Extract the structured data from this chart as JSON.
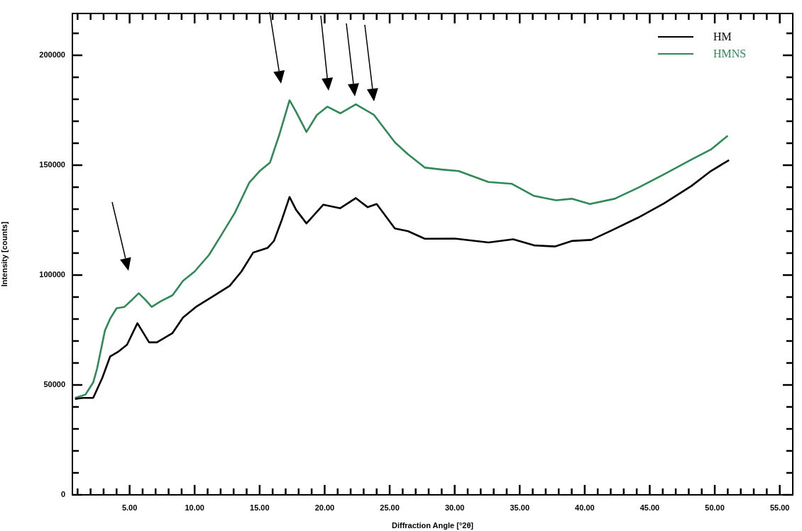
{
  "chart_data": {
    "type": "line",
    "xlabel": "Diffraction Angle [°2θ]",
    "ylabel": "Intensity [counts]",
    "legend": "top right",
    "xlim": [
      0.6,
      56
    ],
    "ylim": [
      0,
      219000
    ],
    "xticks": [
      {
        "value": 1,
        "label": null
      },
      {
        "value": 2,
        "label": null
      },
      {
        "value": 3,
        "label": null
      },
      {
        "value": 4,
        "label": null
      },
      {
        "value": 5,
        "label": "5.00"
      },
      {
        "value": 6,
        "label": null
      },
      {
        "value": 7,
        "label": null
      },
      {
        "value": 8,
        "label": null
      },
      {
        "value": 9,
        "label": null
      },
      {
        "value": 10,
        "label": "10.00"
      },
      {
        "value": 11,
        "label": null
      },
      {
        "value": 12,
        "label": null
      },
      {
        "value": 13,
        "label": null
      },
      {
        "value": 14,
        "label": null
      },
      {
        "value": 15,
        "label": "15.00"
      },
      {
        "value": 16,
        "label": null
      },
      {
        "value": 17,
        "label": null
      },
      {
        "value": 18,
        "label": null
      },
      {
        "value": 19,
        "label": null
      },
      {
        "value": 20,
        "label": "20.00"
      },
      {
        "value": 21,
        "label": null
      },
      {
        "value": 22,
        "label": null
      },
      {
        "value": 23,
        "label": null
      },
      {
        "value": 24,
        "label": null
      },
      {
        "value": 25,
        "label": "25.00"
      },
      {
        "value": 26,
        "label": null
      },
      {
        "value": 27,
        "label": null
      },
      {
        "value": 28,
        "label": null
      },
      {
        "value": 29,
        "label": null
      },
      {
        "value": 30,
        "label": "30.00"
      },
      {
        "value": 31,
        "label": null
      },
      {
        "value": 32,
        "label": null
      },
      {
        "value": 33,
        "label": null
      },
      {
        "value": 34,
        "label": null
      },
      {
        "value": 35,
        "label": "35.00"
      },
      {
        "value": 36,
        "label": null
      },
      {
        "value": 37,
        "label": null
      },
      {
        "value": 38,
        "label": null
      },
      {
        "value": 39,
        "label": null
      },
      {
        "value": 40,
        "label": "40.00"
      },
      {
        "value": 41,
        "label": null
      },
      {
        "value": 42,
        "label": null
      },
      {
        "value": 43,
        "label": null
      },
      {
        "value": 44,
        "label": null
      },
      {
        "value": 45,
        "label": "45.00"
      },
      {
        "value": 46,
        "label": null
      },
      {
        "value": 47,
        "label": null
      },
      {
        "value": 48,
        "label": null
      },
      {
        "value": 49,
        "label": null
      },
      {
        "value": 50,
        "label": "50.00"
      },
      {
        "value": 51,
        "label": null
      },
      {
        "value": 52,
        "label": null
      },
      {
        "value": 53,
        "label": null
      },
      {
        "value": 54,
        "label": null
      },
      {
        "value": 55,
        "label": "55.00"
      }
    ],
    "yticks": [
      0,
      {
        "value": 10000,
        "label": null
      },
      {
        "value": 20000,
        "label": null
      },
      {
        "value": 30000,
        "label": null
      },
      {
        "value": 40000,
        "label": null
      },
      50000,
      {
        "value": 60000,
        "label": null
      },
      {
        "value": 70000,
        "label": null
      },
      {
        "value": 80000,
        "label": null
      },
      {
        "value": 90000,
        "label": null
      },
      100000,
      {
        "value": 110000,
        "label": null
      },
      {
        "value": 120000,
        "label": null
      },
      {
        "value": 130000,
        "label": null
      },
      {
        "value": 140000,
        "label": null
      },
      150000,
      {
        "value": 160000,
        "label": null
      },
      {
        "value": 170000,
        "label": null
      },
      {
        "value": 180000,
        "label": null
      },
      {
        "value": 190000,
        "label": null
      },
      200000,
      {
        "value": 210000,
        "label": null
      }
    ],
    "series": [
      {
        "name": "HM",
        "color": "#000000",
        "x": [
          0.8,
          1.4,
          2.2,
          2.9,
          3.5,
          4.1,
          4.8,
          5.6,
          6.5,
          7.1,
          8.3,
          9.1,
          10.1,
          11.4,
          12.7,
          13.6,
          14.5,
          15.6,
          16.1,
          16.7,
          17.3,
          17.8,
          18.6,
          19.9,
          21.2,
          22.4,
          23.3,
          24.0,
          25.4,
          26.4,
          27.7,
          30.0,
          32.6,
          34.5,
          36.1,
          37.7,
          39.0,
          40.5,
          42.0,
          44.1,
          46.1,
          48.2,
          49.7,
          51.1
        ],
        "values": [
          43600,
          44100,
          44100,
          53200,
          62900,
          65000,
          68300,
          78100,
          69400,
          69400,
          73600,
          80600,
          85500,
          90300,
          95100,
          101600,
          110200,
          112300,
          115500,
          125000,
          135500,
          129700,
          123500,
          132000,
          130400,
          135000,
          130900,
          132300,
          121200,
          120000,
          116500,
          116600,
          114800,
          116300,
          113500,
          113000,
          115500,
          116000,
          120100,
          126100,
          132600,
          140500,
          147300,
          152300
        ]
      },
      {
        "name": "HMNS",
        "color": "#2e8b57",
        "x": [
          0.8,
          1.6,
          2.2,
          2.5,
          3.1,
          3.5,
          4.0,
          4.6,
          5.2,
          5.7,
          6.2,
          6.7,
          7.4,
          8.3,
          9.1,
          10.0,
          11.1,
          12.0,
          13.1,
          14.2,
          15.0,
          15.8,
          16.5,
          17.3,
          17.8,
          18.6,
          19.4,
          20.2,
          21.2,
          22.4,
          23.8,
          25.4,
          26.4,
          27.7,
          29.0,
          30.3,
          32.6,
          34.4,
          36.1,
          37.8,
          39.0,
          40.4,
          42.3,
          44.1,
          46.1,
          48.2,
          49.7,
          51.0
        ],
        "values": [
          44100,
          45600,
          51100,
          57500,
          74700,
          80100,
          84900,
          85500,
          88800,
          91700,
          88800,
          85500,
          88100,
          90800,
          97300,
          101600,
          109100,
          117700,
          128400,
          142000,
          147300,
          151200,
          163600,
          179500,
          174300,
          165100,
          172800,
          176600,
          173600,
          177700,
          172800,
          160400,
          155000,
          148900,
          148000,
          147300,
          142300,
          141500,
          136000,
          134000,
          134700,
          132300,
          134700,
          139700,
          145800,
          152500,
          157100,
          163400
        ]
      }
    ]
  }
}
